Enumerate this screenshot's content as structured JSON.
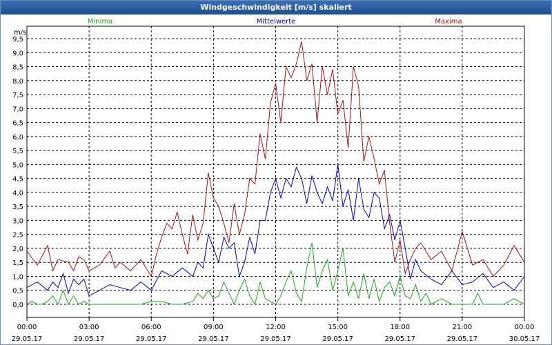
{
  "window": {
    "title": "Windgeschwindigkeit [m/s] skaliert"
  },
  "chart_data": {
    "type": "line",
    "title": "Windgeschwindigkeit [m/s] skaliert",
    "ylabel": "m/s",
    "ylim": [
      -0.5,
      9.8
    ],
    "yticks": [
      "9,5",
      "9,0",
      "8,5",
      "8,0",
      "7,5",
      "7,0",
      "6,5",
      "6,0",
      "5,5",
      "5,0",
      "4,5",
      "4,0",
      "3,5",
      "3,0",
      "2,5",
      "2,0",
      "1,5",
      "1,0",
      "0,5",
      "0,0"
    ],
    "xlim": [
      0,
      24
    ],
    "xticks": [
      {
        "time": "00:00",
        "date": "29.05.17"
      },
      {
        "time": "03:00",
        "date": "29.05.17"
      },
      {
        "time": "06:00",
        "date": "29.05.17"
      },
      {
        "time": "09:00",
        "date": "29.05.17"
      },
      {
        "time": "12:00",
        "date": "29.05.17"
      },
      {
        "time": "15:00",
        "date": "29.05.17"
      },
      {
        "time": "18:00",
        "date": "29.05.17"
      },
      {
        "time": "21:00",
        "date": "29.05.17"
      },
      {
        "time": "00:00",
        "date": "30.05.17"
      }
    ],
    "grid": true,
    "legend": [
      "Minima",
      "Mittelwerte",
      "Maxima"
    ],
    "series": [
      {
        "name": "Minima",
        "color": "#20a020",
        "x": [
          0,
          0.25,
          0.5,
          0.75,
          1,
          1.25,
          1.5,
          1.75,
          2,
          2.25,
          2.5,
          2.75,
          3,
          3.5,
          4,
          4.5,
          5,
          5.5,
          6,
          6.5,
          7,
          7.5,
          8,
          8.25,
          8.5,
          8.75,
          9,
          9.25,
          9.5,
          9.75,
          10,
          10.25,
          10.5,
          10.75,
          11,
          11.25,
          11.5,
          11.75,
          12,
          12.25,
          12.5,
          12.75,
          13,
          13.25,
          13.5,
          13.75,
          14,
          14.25,
          14.5,
          14.75,
          15,
          15.25,
          15.5,
          15.75,
          16,
          16.25,
          16.5,
          16.75,
          17,
          17.25,
          17.5,
          17.75,
          18,
          18.25,
          18.5,
          18.75,
          19,
          19.25,
          19.5,
          20,
          20.5,
          21,
          21.5,
          21.75,
          22,
          22.5,
          23,
          23.5,
          24
        ],
        "values": [
          0,
          0.1,
          0,
          0,
          0.1,
          0.3,
          0,
          0.5,
          0,
          0.3,
          0,
          0.1,
          0,
          0,
          0,
          0,
          0,
          0,
          0.1,
          0.1,
          0,
          0,
          0.1,
          0.4,
          0.2,
          0.5,
          0.2,
          0.3,
          0.8,
          0.4,
          0,
          0.5,
          0.9,
          0.3,
          0,
          0.8,
          0.2,
          0.1,
          0,
          0.3,
          0.8,
          1.2,
          0.4,
          0.1,
          1.3,
          2.2,
          0.6,
          1.2,
          1.6,
          0.5,
          1.2,
          2.0,
          0.3,
          0.8,
          0.2,
          1.1,
          0.2,
          0.9,
          0.1,
          0.6,
          0.8,
          0.3,
          1.0,
          0.3,
          0.2,
          0.7,
          0.1,
          0.4,
          0,
          0.2,
          0,
          0,
          0,
          0.4,
          0,
          0,
          0,
          0.2,
          0
        ]
      },
      {
        "name": "Mittelwerte",
        "color": "#0000a0",
        "x": [
          0,
          0.5,
          1,
          1.25,
          1.5,
          1.75,
          2,
          2.25,
          2.5,
          2.75,
          3,
          3.5,
          4,
          4.5,
          5,
          5.5,
          6,
          6.5,
          7,
          7.5,
          8,
          8.25,
          8.5,
          8.75,
          9,
          9.25,
          9.5,
          9.75,
          10,
          10.25,
          10.5,
          10.75,
          11,
          11.25,
          11.5,
          11.75,
          12,
          12.25,
          12.5,
          12.75,
          13,
          13.25,
          13.5,
          13.75,
          14,
          14.25,
          14.5,
          14.75,
          15,
          15.25,
          15.5,
          15.75,
          16,
          16.25,
          16.5,
          16.75,
          17,
          17.25,
          17.5,
          17.75,
          18,
          18.25,
          18.5,
          18.75,
          19,
          19.5,
          20,
          20.5,
          21,
          21.5,
          22,
          22.5,
          23,
          23.5,
          24
        ],
        "values": [
          0.6,
          0.8,
          0.5,
          0.8,
          0.6,
          1.1,
          0.4,
          0.9,
          0.7,
          0.9,
          0.3,
          0.5,
          0.7,
          0.6,
          0.5,
          0.8,
          0.5,
          1.2,
          1.0,
          1.3,
          1.0,
          1.5,
          1.3,
          2.5,
          2.0,
          1.5,
          2.4,
          2.0,
          2.2,
          1.0,
          1.5,
          2.4,
          1.8,
          3.0,
          3.0,
          4.0,
          4.5,
          3.8,
          4.5,
          4.2,
          4.9,
          4.5,
          3.6,
          4.6,
          4.0,
          3.6,
          4.2,
          3.7,
          5.0,
          3.5,
          4.1,
          3.0,
          4.5,
          3.4,
          3.1,
          4.0,
          3.8,
          2.7,
          3.2,
          2.3,
          3.0,
          2.0,
          0.9,
          1.6,
          1.2,
          0.9,
          0.7,
          1.2,
          0.7,
          0.8,
          1.1,
          0.6,
          0.8,
          0.5,
          1.0
        ]
      },
      {
        "name": "Maxima",
        "color": "#a01010",
        "x": [
          0,
          0.5,
          1,
          1.25,
          1.5,
          2,
          2.25,
          2.5,
          2.75,
          3,
          3.5,
          4,
          4.25,
          4.5,
          5,
          5.5,
          6,
          6.25,
          6.5,
          6.75,
          7,
          7.25,
          7.5,
          7.75,
          8,
          8.25,
          8.5,
          8.75,
          9,
          9.25,
          9.5,
          9.75,
          10,
          10.25,
          10.5,
          10.75,
          11,
          11.25,
          11.5,
          11.75,
          12,
          12.25,
          12.5,
          12.75,
          13,
          13.25,
          13.5,
          13.75,
          14,
          14.25,
          14.5,
          14.75,
          15,
          15.25,
          15.5,
          15.75,
          16,
          16.25,
          16.5,
          16.75,
          17,
          17.25,
          17.5,
          17.75,
          18,
          18.25,
          18.5,
          18.75,
          19,
          19.5,
          20,
          20.5,
          21,
          21.5,
          22,
          22.5,
          23,
          23.5,
          24
        ],
        "values": [
          1.9,
          1.4,
          2.1,
          1.2,
          1.6,
          1.5,
          1.2,
          1.7,
          1.6,
          1.2,
          1.4,
          1.9,
          1.3,
          1.5,
          1.2,
          1.6,
          1.0,
          1.8,
          2.4,
          2.9,
          2.7,
          3.3,
          2.5,
          1.8,
          3.2,
          2.3,
          2.9,
          4.7,
          3.8,
          3.5,
          2.9,
          2.2,
          3.6,
          2.5,
          3.2,
          4.5,
          4.3,
          6.1,
          5.2,
          7.2,
          7.9,
          6.5,
          8.5,
          8.1,
          8.6,
          9.4,
          8.0,
          8.6,
          6.5,
          8.5,
          7.5,
          8.4,
          6.8,
          7.3,
          5.6,
          8.5,
          7.8,
          5.1,
          6.0,
          5.2,
          4.3,
          4.8,
          2.9,
          1.5,
          2.3,
          1.1,
          1.6,
          2.0,
          2.2,
          1.6,
          1.9,
          1.2,
          2.6,
          1.4,
          1.6,
          1.0,
          1.4,
          2.1,
          1.5
        ]
      }
    ]
  }
}
